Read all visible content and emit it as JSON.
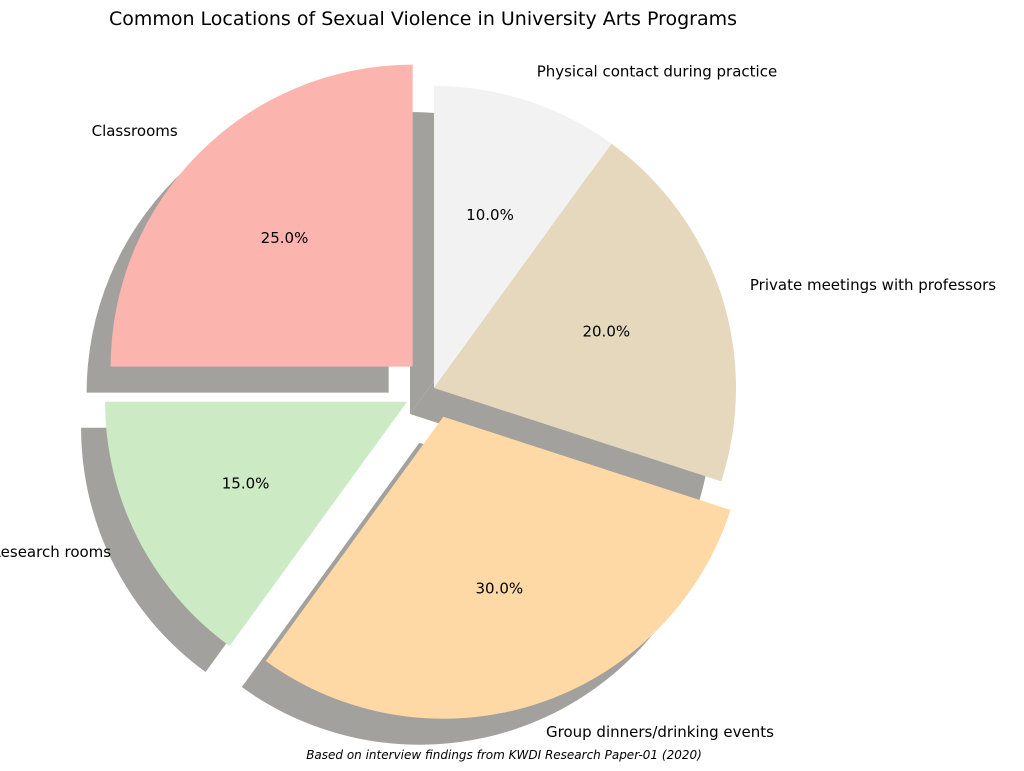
{
  "chart_data": {
    "type": "pie",
    "title": "Common Locations of Sexual Violence in University Arts Programs",
    "caption": "Based on interview findings from KWDI Research Paper-01 (2020)",
    "categories": [
      "Classrooms",
      "Research rooms",
      "Group dinners/drinking events",
      "Private meetings with professors",
      "Physical contact during practice"
    ],
    "values": [
      25.0,
      15.0,
      30.0,
      20.0,
      10.0
    ],
    "percent_labels": [
      "25.0%",
      "15.0%",
      "30.0%",
      "20.0%",
      "10.0%"
    ],
    "colors": [
      "#fbb4ae",
      "#ccebc5",
      "#fed9a6",
      "#e5d8bd",
      "#f2f2f2"
    ],
    "shadow_color": "#a3a19d",
    "start_angle_deg": 90,
    "direction": "counterclockwise",
    "shadow": true,
    "exploded": [
      true,
      true,
      true,
      false,
      false
    ]
  }
}
